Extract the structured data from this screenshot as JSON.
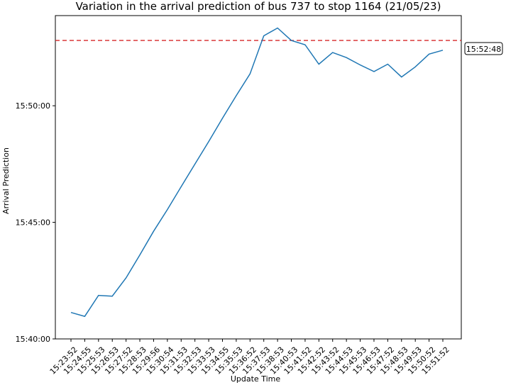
{
  "chart_data": {
    "type": "line",
    "title": "Variation in the arrival prediction of bus 737 to stop 1164 (21/05/23)",
    "xlabel": "Update Time",
    "ylabel": "Arrival Prediction",
    "ylim": [
      "15:40:00",
      "15:53:52"
    ],
    "yticks": [
      "15:40:00",
      "15:45:00",
      "15:50:00"
    ],
    "grid": false,
    "line_color": "#1f77b4",
    "reference_line": {
      "value": "15:52:48",
      "label": "15:52:48",
      "color": "#d62728",
      "style": "dashed"
    },
    "x_tick_labels": [
      "15:23:52",
      "15:24:55",
      "15:25:53",
      "15:26:53",
      "15:27:52",
      "15:28:53",
      "15:29:56",
      "15:30:54",
      "15:31:53",
      "15:32:53",
      "15:33:53",
      "15:34:55",
      "15:35:53",
      "15:36:52",
      "15:37:53",
      "15:38:53",
      "15:40:53",
      "15:41:52",
      "15:42:52",
      "15:43:52",
      "15:44:53",
      "15:45:53",
      "15:46:53",
      "15:47:52",
      "15:48:53",
      "15:49:53",
      "15:50:52",
      "15:51:52"
    ],
    "series": [
      {
        "x": [
          "15:23:52",
          "15:24:55",
          "15:25:53",
          "15:26:53",
          "15:27:52",
          "15:28:53",
          "15:29:56",
          "15:30:54",
          "15:31:53",
          "15:32:53",
          "15:33:53",
          "15:34:55",
          "15:35:53",
          "15:36:52",
          "15:37:53",
          "15:38:53",
          "15:40:53",
          "15:41:52",
          "15:42:52",
          "15:43:52",
          "15:44:53",
          "15:45:53",
          "15:46:53",
          "15:47:52",
          "15:48:53",
          "15:49:53",
          "15:50:52",
          "15:51:52"
        ],
        "y": [
          "15:41:08",
          "15:40:58",
          "15:41:52",
          "15:41:50",
          "15:42:37",
          "15:43:36",
          "15:44:37",
          "15:45:33",
          "15:46:32",
          "15:47:30",
          "15:48:28",
          "15:49:28",
          "15:50:26",
          "15:51:22",
          "15:53:00",
          "15:53:20",
          "15:52:48",
          "15:52:37",
          "15:51:47",
          "15:52:17",
          "15:52:04",
          "15:51:45",
          "15:51:28",
          "15:51:47",
          "15:51:14",
          "15:51:40",
          "15:52:13",
          "15:52:23"
        ]
      }
    ]
  }
}
